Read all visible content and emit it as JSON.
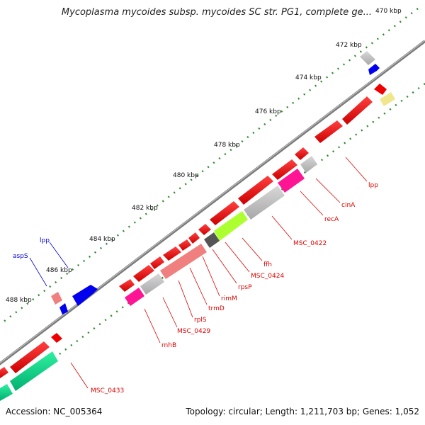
{
  "title": "Mycoplasma mycoides subsp. mycoides SC str. PG1, complete ge...",
  "accession": "Accession: NC_005364",
  "stats": "Topology: circular; Length: 1,211,703 bp; Genes: 1,052",
  "colors": {
    "backbone": "#7a7a7a",
    "tick": "#2e8b2e",
    "label_red": "#dd0000",
    "label_blue": "#0000cc"
  },
  "ticks": [
    "470 kbp",
    "472 kbp",
    "474 kbp",
    "476 kbp",
    "478 kbp",
    "480 kbp",
    "482 kbp",
    "484 kbp",
    "486 kbp",
    "488 kbp"
  ],
  "gene_labels": [
    {
      "name": "lpp",
      "color": "#dd0000"
    },
    {
      "name": "cinA",
      "color": "#dd0000"
    },
    {
      "name": "recA",
      "color": "#dd0000"
    },
    {
      "name": "MSC_0422",
      "color": "#dd0000"
    },
    {
      "name": "ffh",
      "color": "#dd0000"
    },
    {
      "name": "MSC_0424",
      "color": "#dd0000"
    },
    {
      "name": "rpsP",
      "color": "#dd0000"
    },
    {
      "name": "rimM",
      "color": "#dd0000"
    },
    {
      "name": "trmD",
      "color": "#dd0000"
    },
    {
      "name": "rplS",
      "color": "#dd0000"
    },
    {
      "name": "MSC_0429",
      "color": "#dd0000"
    },
    {
      "name": "rnhB",
      "color": "#dd0000"
    },
    {
      "name": "MSC_0433",
      "color": "#dd0000"
    },
    {
      "name": "lpp",
      "color": "#0000cc"
    },
    {
      "name": "aspS",
      "color": "#0000cc"
    }
  ]
}
